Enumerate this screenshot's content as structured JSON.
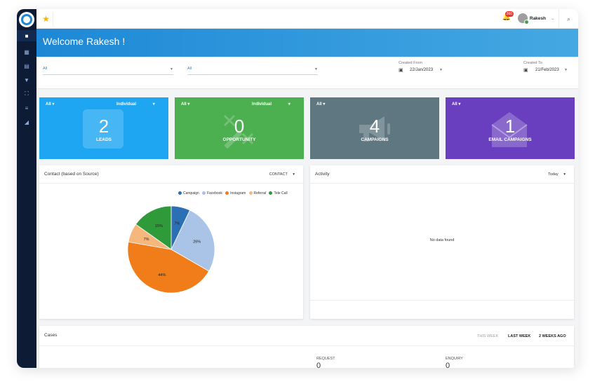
{
  "header": {
    "user_name": "Rakesh",
    "notification_count": "260"
  },
  "welcome": {
    "title": "Welcome Rakesh !"
  },
  "filters": {
    "select1_value": "All",
    "select2_value": "All",
    "created_from_label": "Created From",
    "created_from_value": "22/Jan/2023",
    "created_to_label": "Created To",
    "created_to_value": "21/Feb/2023"
  },
  "cards": [
    {
      "select_left": "All",
      "select_right": "Individual",
      "value": "2",
      "label": "LEADS",
      "color": "#1ea6f2"
    },
    {
      "select_left": "All",
      "select_right": "Individual",
      "value": "0",
      "label": "OPPORTUNITY",
      "color": "#4caf50"
    },
    {
      "select_left": "All",
      "value": "4",
      "label": "CAMPAIGNS",
      "color": "#5e7780"
    },
    {
      "select_left": "All",
      "value": "1",
      "label": "EMAIL CAMPAIGNS",
      "color": "#6a3fbf"
    }
  ],
  "contact_panel": {
    "title": "Contact (based on Source)",
    "dropdown": "CONTACT"
  },
  "activity_panel": {
    "title": "Activity",
    "dropdown": "Today",
    "empty_text": "No data found"
  },
  "cases_panel": {
    "title": "Cases",
    "tabs": [
      "THIS WEEK",
      "LAST WEEK",
      "2 WEEKS AGO"
    ],
    "columns": [
      {
        "label": "REQUEST",
        "value": "0"
      },
      {
        "label": "ENQUIRY",
        "value": "0"
      }
    ]
  },
  "chart_data": {
    "type": "pie",
    "labels": [
      "Campaign",
      "Facebook",
      "Instagram",
      "Referral",
      "Tele Call"
    ],
    "values": [
      7,
      26,
      44,
      7,
      15
    ],
    "value_labels": [
      "7%",
      "26%",
      "44%",
      "7%",
      "15%"
    ],
    "colors": [
      "#2b6fb5",
      "#a9c4e6",
      "#f07d1a",
      "#f6b77c",
      "#2e9a3a"
    ],
    "legend": "top-right"
  }
}
